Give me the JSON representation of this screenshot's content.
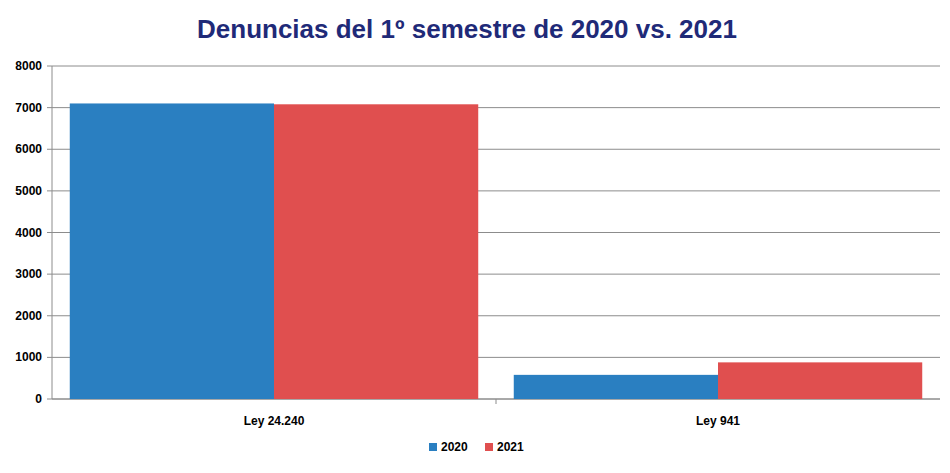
{
  "chart_data": {
    "type": "bar",
    "title": "Denuncias del 1º semestre de 2020 vs. 2021",
    "categories": [
      "Ley 24.240",
      "Ley 941"
    ],
    "series": [
      {
        "name": "2020",
        "color": "#2a7fc1",
        "values": [
          7100,
          580
        ]
      },
      {
        "name": "2021",
        "color": "#e04f4f",
        "values": [
          7080,
          880
        ]
      }
    ],
    "ylim": [
      0,
      8000
    ],
    "yticks": [
      0,
      1000,
      2000,
      3000,
      4000,
      5000,
      6000,
      7000,
      8000
    ],
    "grid": true,
    "legend": "bottom"
  }
}
